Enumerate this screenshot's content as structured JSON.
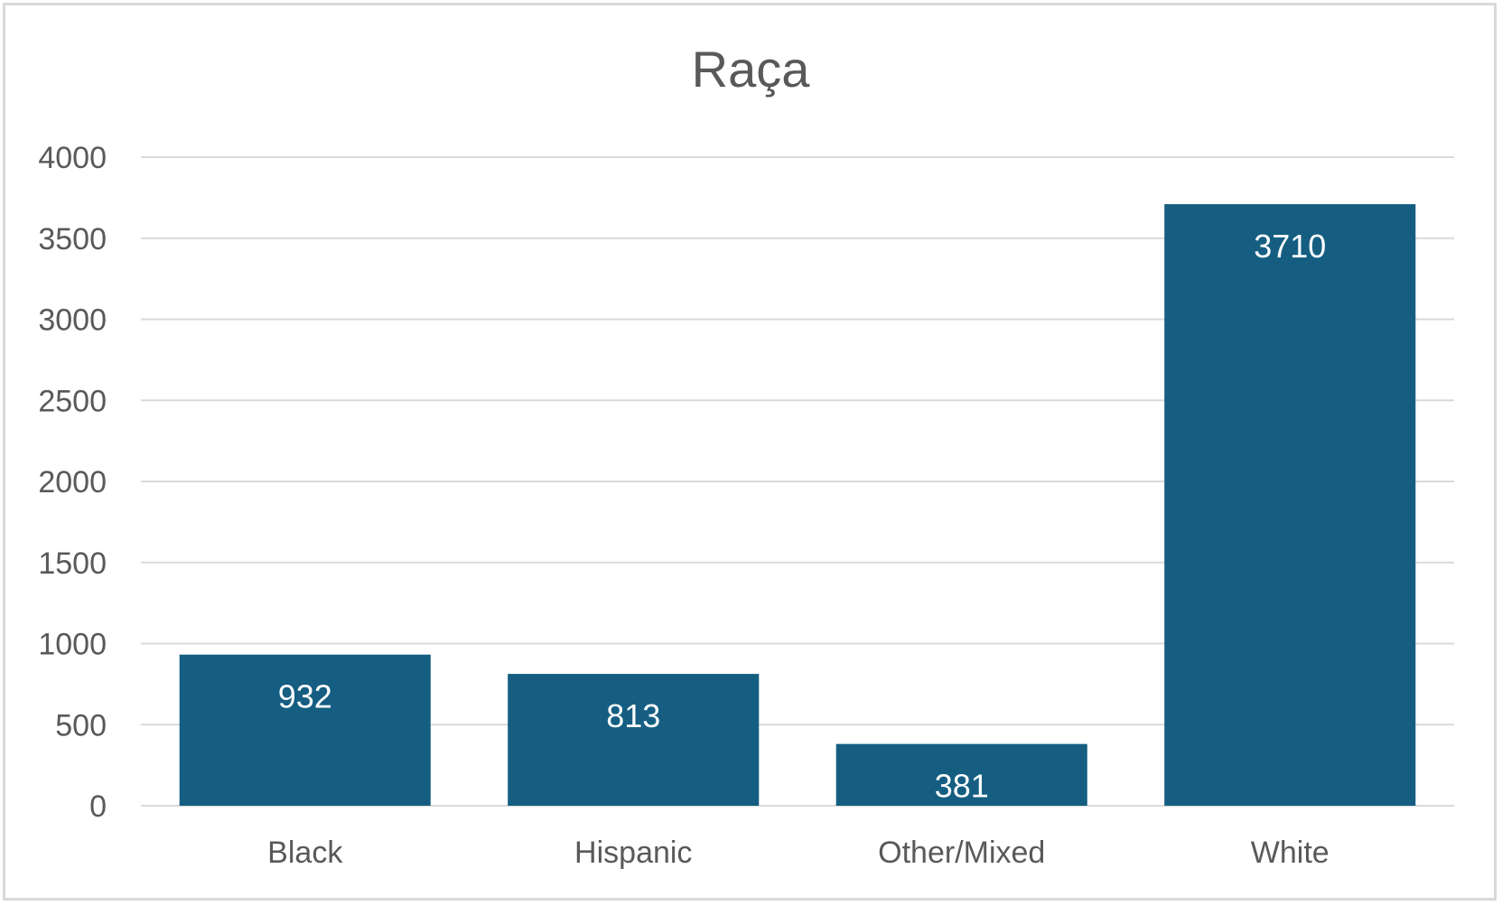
{
  "chart_data": {
    "type": "bar",
    "title": "Raça",
    "categories": [
      "Black",
      "Hispanic",
      "Other/Mixed",
      "White"
    ],
    "values": [
      932,
      813,
      381,
      3710
    ],
    "data_labels": [
      "932",
      "813",
      "381",
      "3710"
    ],
    "ylim": [
      0,
      4000
    ],
    "yticks": [
      0,
      500,
      1000,
      1500,
      2000,
      2500,
      3000,
      3500,
      4000
    ],
    "ytick_labels": [
      "0",
      "500",
      "1000",
      "1500",
      "2000",
      "2500",
      "3000",
      "3500",
      "4000"
    ],
    "grid": true,
    "legend": "none",
    "bar_color": "#155e82",
    "gridline_color": "#d9d9d9"
  }
}
